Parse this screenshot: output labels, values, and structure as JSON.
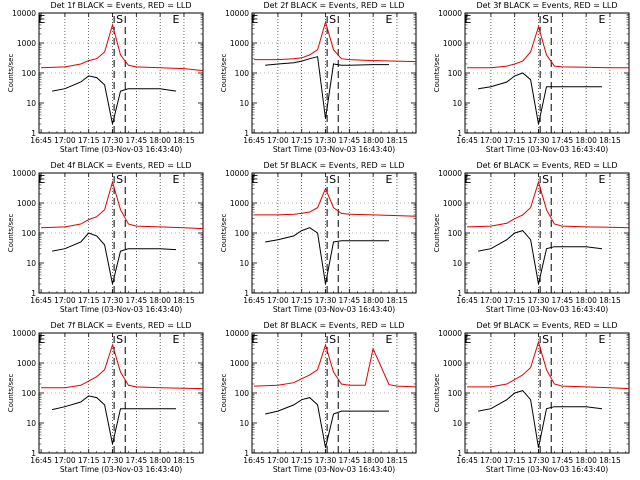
{
  "chart_data": [
    {
      "type": "line",
      "title": "Det 1f BLACK = Events, RED = LLD",
      "xlabel": "Start Time (03-Nov-03 16:43:40)",
      "ylabel": "Counts/sec",
      "y_scale": "log",
      "ylim": [
        1,
        10000
      ],
      "x_ticks": [
        "16:45",
        "17:00",
        "17:15",
        "17:30",
        "17:45",
        "18:00",
        "18:15"
      ],
      "y_ticks": [
        "1",
        "10",
        "100",
        "1000",
        "10000"
      ],
      "markers": [
        "E",
        "S",
        "E"
      ],
      "series": [
        {
          "name": "RED = LLD",
          "color": "#e00000",
          "x": [
            "16:45",
            "17:00",
            "17:10",
            "17:15",
            "17:20",
            "17:25",
            "17:30",
            "17:35",
            "17:40",
            "17:45",
            "18:00",
            "18:15",
            "18:27"
          ],
          "y": [
            150,
            160,
            200,
            260,
            300,
            500,
            4000,
            400,
            180,
            160,
            150,
            140,
            120
          ]
        },
        {
          "name": "BLACK = Events",
          "color": "#000000",
          "x": [
            "16:52",
            "17:00",
            "17:10",
            "17:15",
            "17:20",
            "17:25",
            "17:30",
            "17:35",
            "17:40",
            "17:45",
            "18:00",
            "18:10"
          ],
          "y": [
            25,
            30,
            50,
            80,
            70,
            40,
            2,
            25,
            30,
            30,
            30,
            25
          ]
        }
      ]
    },
    {
      "type": "line",
      "title": "Det 2f BLACK = Events, RED = LLD",
      "xlabel": "Start Time (03-Nov-03 16:43:40)",
      "ylabel": "Counts/sec",
      "y_scale": "log",
      "ylim": [
        1,
        10000
      ],
      "x_ticks": [
        "16:45",
        "17:00",
        "17:15",
        "17:30",
        "17:45",
        "18:00",
        "18:15"
      ],
      "y_ticks": [
        "1",
        "10",
        "100",
        "1000",
        "10000"
      ],
      "markers": [
        "E",
        "S",
        "E"
      ],
      "series": [
        {
          "name": "RED = LLD",
          "color": "#e00000",
          "x": [
            "16:45",
            "17:00",
            "17:10",
            "17:15",
            "17:20",
            "17:25",
            "17:30",
            "17:35",
            "17:40",
            "17:45",
            "18:00",
            "18:15",
            "18:27"
          ],
          "y": [
            280,
            280,
            300,
            320,
            400,
            600,
            5000,
            600,
            300,
            280,
            260,
            250,
            240
          ]
        },
        {
          "name": "BLACK = Events",
          "color": "#000000",
          "x": [
            "16:52",
            "17:00",
            "17:10",
            "17:15",
            "17:20",
            "17:25",
            "17:30",
            "17:35",
            "17:40",
            "17:45",
            "18:00",
            "18:10"
          ],
          "y": [
            180,
            200,
            220,
            250,
            300,
            350,
            3,
            200,
            180,
            180,
            190,
            190
          ]
        }
      ]
    },
    {
      "type": "line",
      "title": "Det 3f BLACK = Events, RED = LLD",
      "xlabel": "Start Time (03-Nov-03 16:43:40)",
      "ylabel": "Counts/sec",
      "y_scale": "log",
      "ylim": [
        1,
        10000
      ],
      "x_ticks": [
        "16:45",
        "17:00",
        "17:15",
        "17:30",
        "17:45",
        "18:00",
        "18:15"
      ],
      "y_ticks": [
        "1",
        "10",
        "100",
        "1000",
        "10000"
      ],
      "markers": [
        "E",
        "S",
        "E"
      ],
      "series": [
        {
          "name": "RED = LLD",
          "color": "#e00000",
          "x": [
            "16:45",
            "17:00",
            "17:10",
            "17:15",
            "17:20",
            "17:25",
            "17:30",
            "17:35",
            "17:40",
            "17:45",
            "18:00",
            "18:15",
            "18:27"
          ],
          "y": [
            150,
            150,
            170,
            200,
            250,
            500,
            3500,
            400,
            170,
            160,
            155,
            150,
            150
          ]
        },
        {
          "name": "BLACK = Events",
          "color": "#000000",
          "x": [
            "16:52",
            "17:00",
            "17:10",
            "17:15",
            "17:20",
            "17:25",
            "17:30",
            "17:35",
            "17:40",
            "17:45",
            "18:00",
            "18:10"
          ],
          "y": [
            30,
            35,
            50,
            80,
            100,
            60,
            2,
            35,
            35,
            35,
            35,
            35
          ]
        }
      ]
    },
    {
      "type": "line",
      "title": "Det 4f BLACK = Events, RED = LLD",
      "xlabel": "Start Time (03-Nov-03 16:43:40)",
      "ylabel": "Counts/sec",
      "y_scale": "log",
      "ylim": [
        1,
        10000
      ],
      "x_ticks": [
        "16:45",
        "17:00",
        "17:15",
        "17:30",
        "17:45",
        "18:00",
        "18:15"
      ],
      "y_ticks": [
        "1",
        "10",
        "100",
        "1000",
        "10000"
      ],
      "markers": [
        "E",
        "S",
        "E"
      ],
      "series": [
        {
          "name": "RED = LLD",
          "color": "#e00000",
          "x": [
            "16:45",
            "17:00",
            "17:10",
            "17:15",
            "17:20",
            "17:25",
            "17:30",
            "17:35",
            "17:40",
            "17:45",
            "18:00",
            "18:15",
            "18:27"
          ],
          "y": [
            150,
            160,
            200,
            280,
            350,
            600,
            5000,
            600,
            200,
            170,
            160,
            150,
            140
          ]
        },
        {
          "name": "BLACK = Events",
          "color": "#000000",
          "x": [
            "16:52",
            "17:00",
            "17:10",
            "17:15",
            "17:20",
            "17:25",
            "17:30",
            "17:35",
            "17:40",
            "17:45",
            "18:00",
            "18:10"
          ],
          "y": [
            25,
            30,
            50,
            100,
            80,
            40,
            2,
            25,
            30,
            30,
            30,
            28
          ]
        }
      ]
    },
    {
      "type": "line",
      "title": "Det 5f BLACK = Events, RED = LLD",
      "xlabel": "Start Time (03-Nov-03 16:43:40)",
      "ylabel": "Counts/sec",
      "y_scale": "log",
      "ylim": [
        1,
        10000
      ],
      "x_ticks": [
        "16:45",
        "17:00",
        "17:15",
        "17:30",
        "17:45",
        "18:00",
        "18:15"
      ],
      "y_ticks": [
        "1",
        "10",
        "100",
        "1000",
        "10000"
      ],
      "markers": [
        "E",
        "S",
        "E"
      ],
      "series": [
        {
          "name": "RED = LLD",
          "color": "#e00000",
          "x": [
            "16:45",
            "17:00",
            "17:10",
            "17:15",
            "17:20",
            "17:25",
            "17:30",
            "17:35",
            "17:40",
            "17:45",
            "18:00",
            "18:15",
            "18:27"
          ],
          "y": [
            400,
            400,
            420,
            450,
            500,
            700,
            3000,
            700,
            450,
            420,
            400,
            380,
            360
          ]
        },
        {
          "name": "BLACK = Events",
          "color": "#000000",
          "x": [
            "16:52",
            "17:00",
            "17:10",
            "17:15",
            "17:20",
            "17:25",
            "17:30",
            "17:35",
            "17:40",
            "17:45",
            "18:00",
            "18:10"
          ],
          "y": [
            50,
            60,
            80,
            120,
            150,
            100,
            2,
            50,
            55,
            55,
            55,
            55
          ]
        }
      ]
    },
    {
      "type": "line",
      "title": "Det 6f BLACK = Events, RED = LLD",
      "xlabel": "Start Time (03-Nov-03 16:43:40)",
      "ylabel": "Counts/sec",
      "y_scale": "log",
      "ylim": [
        1,
        10000
      ],
      "x_ticks": [
        "16:45",
        "17:00",
        "17:15",
        "17:30",
        "17:45",
        "18:00",
        "18:15"
      ],
      "y_ticks": [
        "1",
        "10",
        "100",
        "1000",
        "10000"
      ],
      "markers": [
        "E",
        "S",
        "E"
      ],
      "series": [
        {
          "name": "RED = LLD",
          "color": "#e00000",
          "x": [
            "16:45",
            "17:00",
            "17:10",
            "17:15",
            "17:20",
            "17:25",
            "17:30",
            "17:35",
            "17:40",
            "17:45",
            "18:00",
            "18:15",
            "18:27"
          ],
          "y": [
            160,
            170,
            210,
            300,
            400,
            700,
            5000,
            600,
            200,
            170,
            160,
            155,
            150
          ]
        },
        {
          "name": "BLACK = Events",
          "color": "#000000",
          "x": [
            "16:52",
            "17:00",
            "17:10",
            "17:15",
            "17:20",
            "17:25",
            "17:30",
            "17:35",
            "17:40",
            "17:45",
            "18:00",
            "18:10"
          ],
          "y": [
            25,
            30,
            60,
            100,
            120,
            60,
            2,
            30,
            35,
            35,
            35,
            30
          ]
        }
      ]
    },
    {
      "type": "line",
      "title": "Det 7f BLACK = Events, RED = LLD",
      "xlabel": "Start Time (03-Nov-03 16:43:40)",
      "ylabel": "Counts/sec",
      "y_scale": "log",
      "ylim": [
        1,
        10000
      ],
      "x_ticks": [
        "16:45",
        "17:00",
        "17:15",
        "17:30",
        "17:45",
        "18:00",
        "18:15"
      ],
      "y_ticks": [
        "1",
        "10",
        "100",
        "1000",
        "10000"
      ],
      "markers": [
        "E",
        "S",
        "E"
      ],
      "series": [
        {
          "name": "RED = LLD",
          "color": "#e00000",
          "x": [
            "16:45",
            "17:00",
            "17:10",
            "17:15",
            "17:20",
            "17:25",
            "17:30",
            "17:35",
            "17:40",
            "17:45",
            "18:00",
            "18:15",
            "18:27"
          ],
          "y": [
            150,
            150,
            180,
            250,
            350,
            600,
            4000,
            500,
            180,
            160,
            150,
            145,
            140
          ]
        },
        {
          "name": "BLACK = Events",
          "color": "#000000",
          "x": [
            "16:52",
            "17:00",
            "17:10",
            "17:15",
            "17:20",
            "17:25",
            "17:30",
            "17:35",
            "17:40",
            "17:45",
            "18:00",
            "18:10"
          ],
          "y": [
            28,
            35,
            50,
            80,
            70,
            40,
            2,
            30,
            30,
            30,
            30,
            30
          ]
        }
      ]
    },
    {
      "type": "line",
      "title": "Det 8f BLACK = Events, RED = LLD",
      "xlabel": "Start Time (03-Nov-03 16:43:40)",
      "ylabel": "Counts/sec",
      "y_scale": "log",
      "ylim": [
        1,
        10000
      ],
      "x_ticks": [
        "16:45",
        "17:00",
        "17:15",
        "17:30",
        "17:45",
        "18:00",
        "18:15"
      ],
      "y_ticks": [
        "1",
        "10",
        "100",
        "1000",
        "10000"
      ],
      "markers": [
        "E",
        "S",
        "E"
      ],
      "series": [
        {
          "name": "RED = LLD",
          "color": "#e00000",
          "x": [
            "16:45",
            "17:00",
            "17:10",
            "17:15",
            "17:20",
            "17:25",
            "17:30",
            "17:35",
            "17:40",
            "17:45",
            "17:55",
            "18:00",
            "18:10",
            "18:15",
            "18:27"
          ],
          "y": [
            170,
            180,
            220,
            300,
            400,
            600,
            4000,
            500,
            200,
            180,
            180,
            3000,
            190,
            170,
            160
          ]
        },
        {
          "name": "BLACK = Events",
          "color": "#000000",
          "x": [
            "16:52",
            "17:00",
            "17:10",
            "17:15",
            "17:20",
            "17:25",
            "17:30",
            "17:35",
            "17:40",
            "17:45",
            "18:00",
            "18:10"
          ],
          "y": [
            20,
            25,
            40,
            60,
            70,
            40,
            1.5,
            20,
            25,
            25,
            25,
            25
          ]
        }
      ]
    },
    {
      "type": "line",
      "title": "Det 9f BLACK = Events, RED = LLD",
      "xlabel": "Start Time (03-Nov-03 16:43:40)",
      "ylabel": "Counts/sec",
      "y_scale": "log",
      "ylim": [
        1,
        10000
      ],
      "x_ticks": [
        "16:45",
        "17:00",
        "17:15",
        "17:30",
        "17:45",
        "18:00",
        "18:15"
      ],
      "y_ticks": [
        "1",
        "10",
        "100",
        "1000",
        "10000"
      ],
      "markers": [
        "E",
        "S",
        "E"
      ],
      "series": [
        {
          "name": "RED = LLD",
          "color": "#e00000",
          "x": [
            "16:45",
            "17:00",
            "17:10",
            "17:15",
            "17:20",
            "17:25",
            "17:30",
            "17:35",
            "17:40",
            "17:45",
            "18:00",
            "18:15",
            "18:27"
          ],
          "y": [
            160,
            160,
            200,
            280,
            400,
            700,
            5000,
            600,
            200,
            170,
            160,
            150,
            140
          ]
        },
        {
          "name": "BLACK = Events",
          "color": "#000000",
          "x": [
            "16:52",
            "17:00",
            "17:10",
            "17:15",
            "17:20",
            "17:25",
            "17:30",
            "17:35",
            "17:40",
            "17:45",
            "18:00",
            "18:10"
          ],
          "y": [
            25,
            30,
            60,
            100,
            120,
            60,
            1.5,
            30,
            35,
            35,
            35,
            30
          ]
        }
      ]
    }
  ]
}
